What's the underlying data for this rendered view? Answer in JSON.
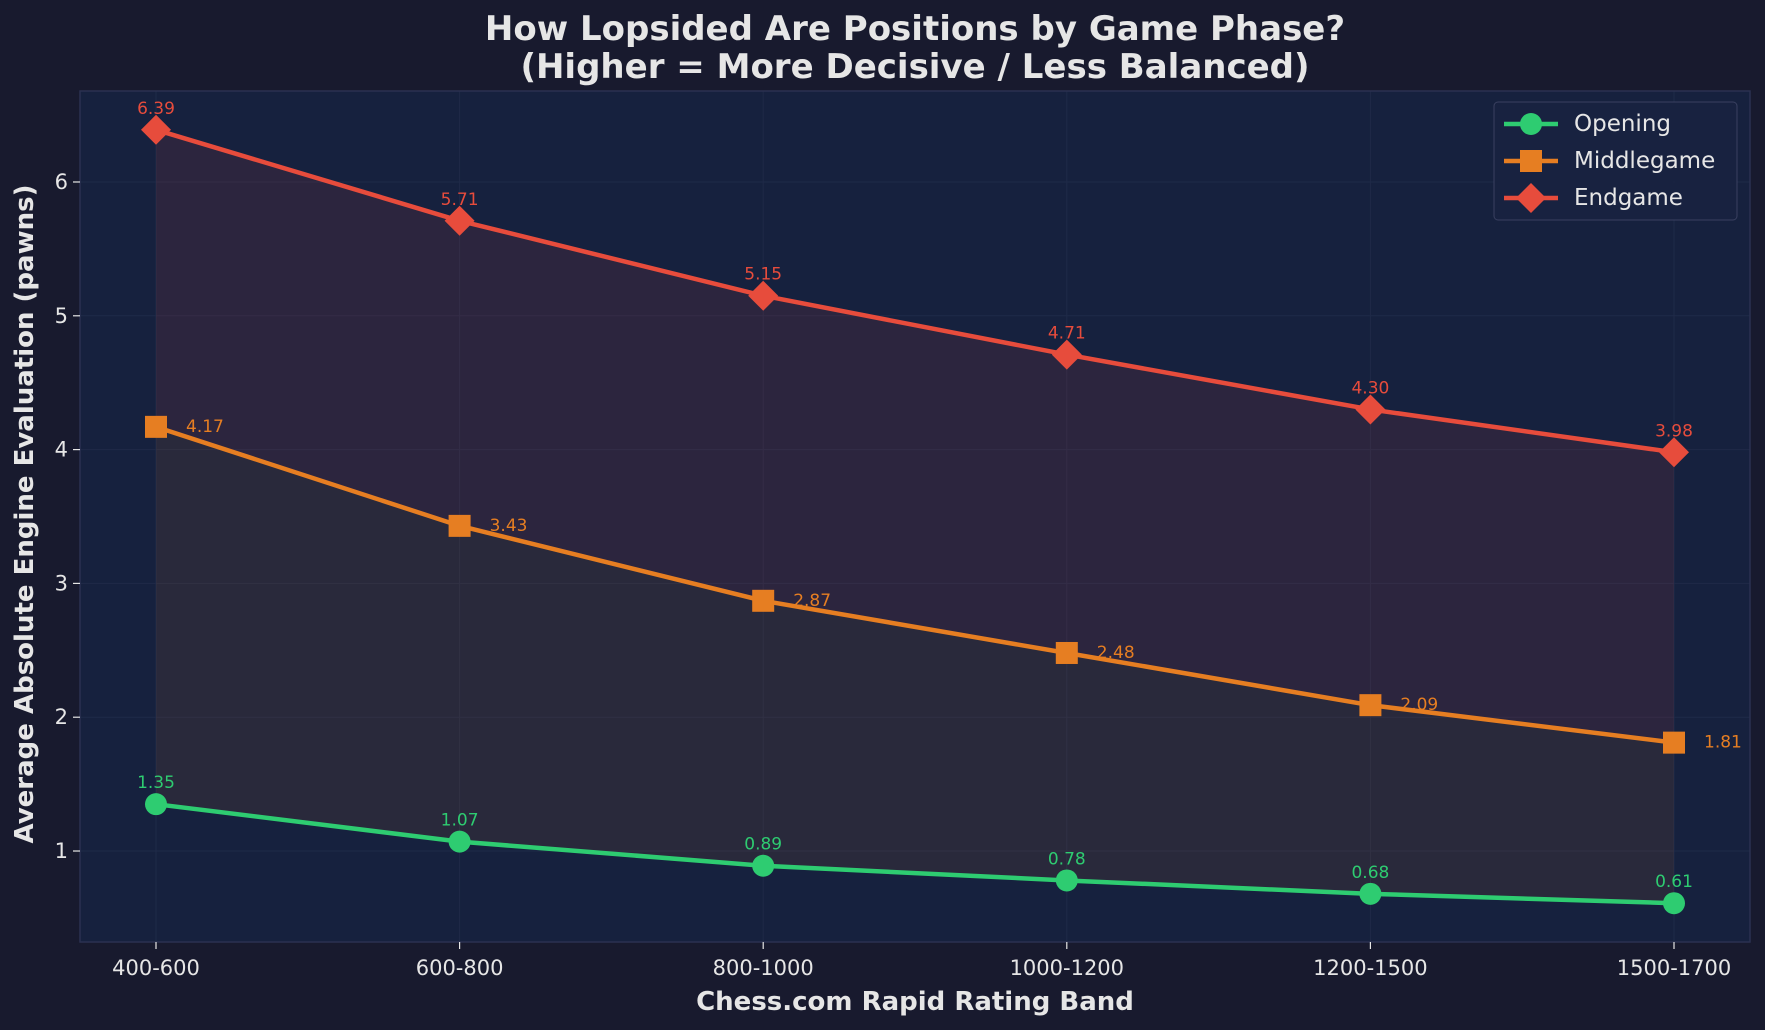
{
  "chart_data": {
    "type": "line",
    "title": "How Lopsided Are Positions by Game Phase?",
    "subtitle": "(Higher = More Decisive / Less Balanced)",
    "xlabel": "Chess.com Rapid Rating Band",
    "ylabel": "Average Absolute Engine Evaluation (pawns)",
    "categories": [
      "400-600",
      "600-800",
      "800-1000",
      "1000-1200",
      "1200-1500",
      "1500-1700"
    ],
    "ylim": [
      0.32,
      6.68
    ],
    "yticks": [
      1,
      2,
      3,
      4,
      5,
      6
    ],
    "grid": true,
    "legend_position": "top-right",
    "series": [
      {
        "name": "Opening",
        "marker": "circle",
        "color": "#2ecc71",
        "values": [
          1.35,
          1.07,
          0.89,
          0.78,
          0.68,
          0.61
        ],
        "labels": [
          "1.35",
          "1.07",
          "0.89",
          "0.78",
          "0.68",
          "0.61"
        ]
      },
      {
        "name": "Middlegame",
        "marker": "square",
        "color": "#e67e22",
        "values": [
          4.17,
          3.43,
          2.87,
          2.48,
          2.09,
          1.81
        ],
        "labels": [
          "4.17",
          "3.43",
          "2.87",
          "2.48",
          "2.09",
          "1.81"
        ]
      },
      {
        "name": "Endgame",
        "marker": "diamond",
        "color": "#e74c3c",
        "values": [
          6.39,
          5.71,
          5.15,
          4.71,
          4.3,
          3.98
        ],
        "labels": [
          "6.39",
          "5.71",
          "5.15",
          "4.71",
          "4.30",
          "3.98"
        ]
      }
    ],
    "colors": {
      "page_background": "#181a2e",
      "plot_background": "#16213e",
      "plot_border": "#2a3150",
      "text": "#e6e6e6",
      "grid": "#1f2a48",
      "legend_background": "#182240",
      "legend_border": "#3a4060"
    }
  }
}
